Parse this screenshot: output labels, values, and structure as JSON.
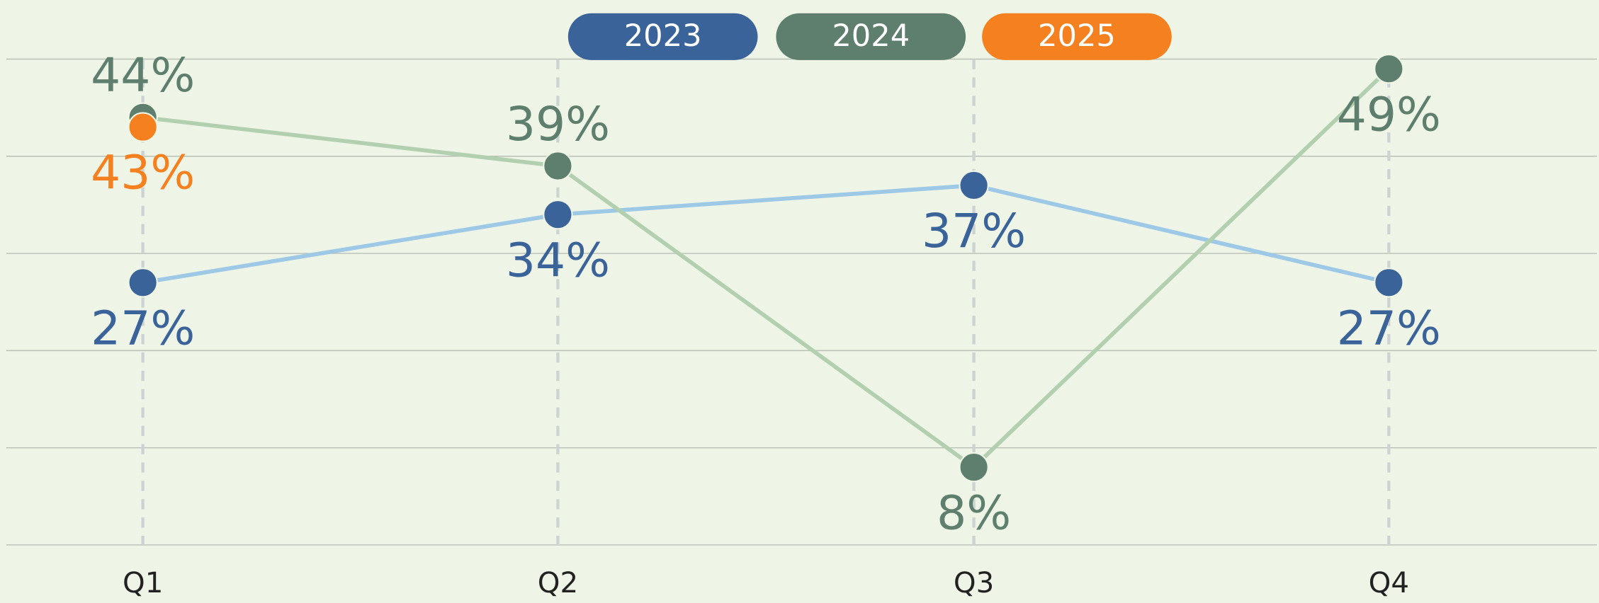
{
  "chart_data": {
    "type": "line",
    "categories": [
      "Q1",
      "Q2",
      "Q3",
      "Q4"
    ],
    "series": [
      {
        "name": "2023",
        "color": "#3a6399",
        "line_color": "#9dc9e6",
        "values": [
          27,
          34,
          37,
          27
        ],
        "value_labels": [
          "27%",
          "34%",
          "37%",
          "27%"
        ]
      },
      {
        "name": "2024",
        "color": "#5e7f6d",
        "line_color": "#b2d0b0",
        "values": [
          44,
          39,
          8,
          49
        ],
        "value_labels": [
          "44%",
          "39%",
          "8%",
          "49%"
        ]
      },
      {
        "name": "2025",
        "color": "#f5801f",
        "line_color": "#f8b27a",
        "values": [
          43,
          null,
          null,
          null
        ],
        "value_labels": [
          "43%",
          null,
          null,
          null
        ]
      }
    ],
    "ylim": [
      0,
      50
    ],
    "yticks": [
      0,
      10,
      20,
      30,
      40,
      50
    ],
    "grid": true
  }
}
